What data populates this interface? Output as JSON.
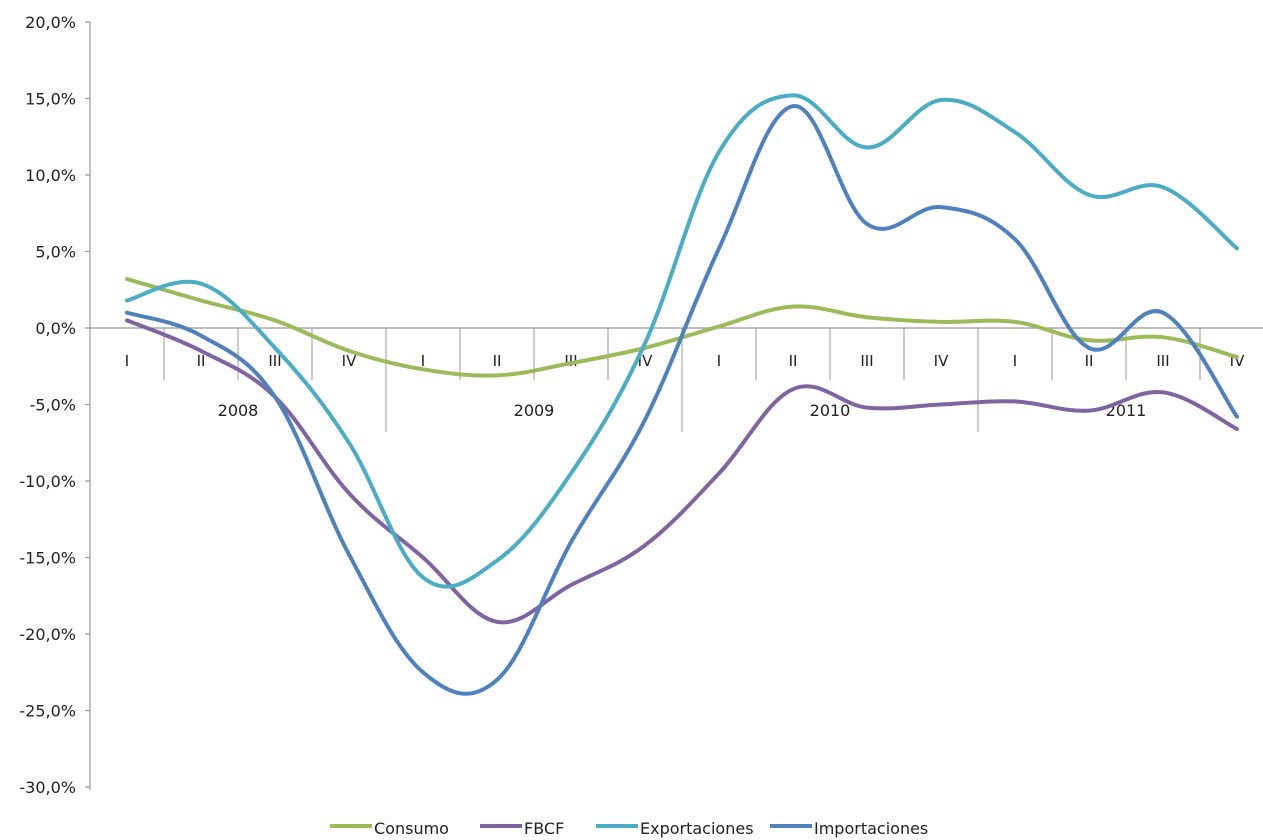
{
  "chart_data": {
    "type": "line",
    "title": "",
    "xlabel": "",
    "ylabel": "",
    "ylim": [
      -30,
      20
    ],
    "y_ticks": [
      "20,0%",
      "15,0%",
      "10,0%",
      "5,0%",
      "0,0%",
      "-5,0%",
      "-10,0%",
      "-15,0%",
      "-20,0%",
      "-25,0%",
      "-30,0%"
    ],
    "y_tick_values": [
      20,
      15,
      10,
      5,
      0,
      -5,
      -10,
      -15,
      -20,
      -25,
      -30
    ],
    "categories": [
      "I",
      "II",
      "III",
      "IV",
      "I",
      "II",
      "III",
      "IV",
      "I",
      "II",
      "III",
      "IV",
      "I",
      "II",
      "III",
      "IV"
    ],
    "years": [
      {
        "label": "2008",
        "quarters": 4
      },
      {
        "label": "2009",
        "quarters": 4
      },
      {
        "label": "2010",
        "quarters": 4
      },
      {
        "label": "2011",
        "quarters": 4
      }
    ],
    "legend_position": "bottom",
    "grid": false,
    "series": [
      {
        "name": "Consumo",
        "color": "#9bbb59",
        "values": [
          3.2,
          1.8,
          0.5,
          -1.5,
          -2.7,
          -3.1,
          -2.3,
          -1.3,
          0.1,
          1.4,
          0.7,
          0.4,
          0.4,
          -0.8,
          -0.6,
          -1.9
        ]
      },
      {
        "name": "FBCF",
        "color": "#8064a2",
        "values": [
          0.5,
          -1.5,
          -4.5,
          -10.8,
          -15.0,
          -19.2,
          -16.8,
          -14.2,
          -9.5,
          -4.0,
          -5.2,
          -5.0,
          -4.8,
          -5.4,
          -4.2,
          -6.6
        ]
      },
      {
        "name": "Exportaciones",
        "color": "#4bacc6",
        "values": [
          1.8,
          2.9,
          -1.3,
          -7.5,
          -16.3,
          -15.2,
          -9.5,
          -1.0,
          11.5,
          15.2,
          11.8,
          14.9,
          12.8,
          8.7,
          9.2,
          5.2
        ]
      },
      {
        "name": "Importaciones",
        "color": "#4f81bd",
        "values": [
          1.0,
          -0.5,
          -4.5,
          -14.8,
          -22.5,
          -23.0,
          -14.0,
          -6.0,
          5.2,
          14.5,
          6.8,
          7.9,
          5.8,
          -1.3,
          1.0,
          -5.8
        ]
      }
    ]
  }
}
